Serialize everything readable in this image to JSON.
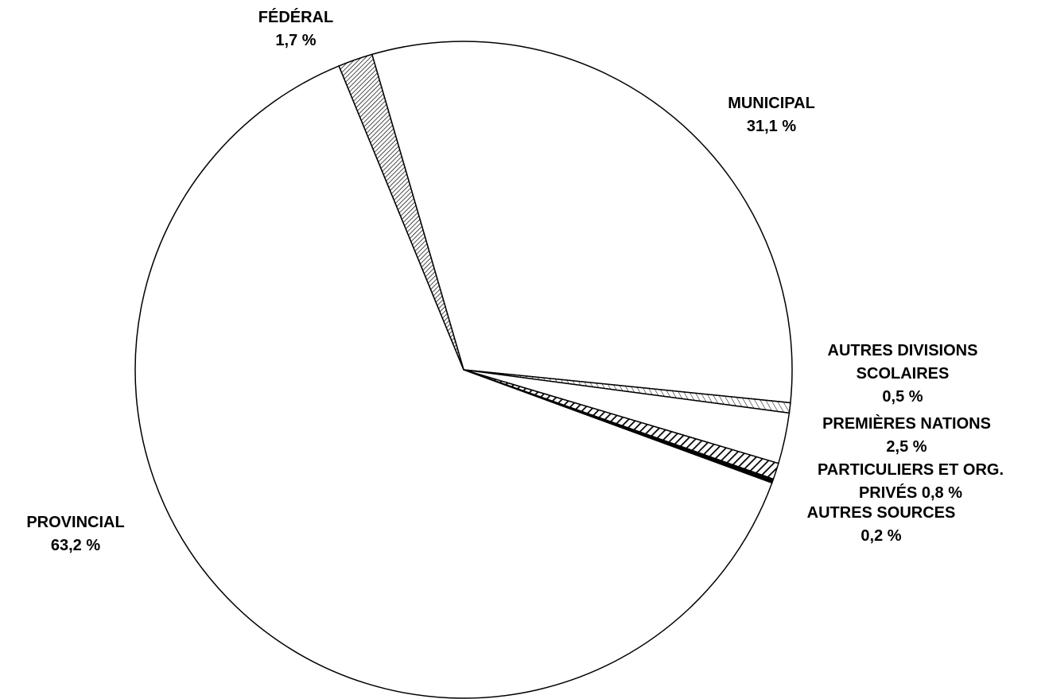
{
  "chart_data": {
    "type": "pie",
    "categories": [
      "MUNICIPAL",
      "AUTRES DIVISIONS SCOLAIRES",
      "PREMIÈRES NATIONS",
      "PARTICULIERS ET ORG. PRIVÉS",
      "AUTRES SOURCES",
      "PROVINCIAL",
      "FÉDÉRAL"
    ],
    "values": [
      31.1,
      0.5,
      2.5,
      0.8,
      0.2,
      63.2,
      1.7
    ],
    "value_labels": [
      "31,1 %",
      "0,5 %",
      "2,5 %",
      "0,8 %",
      "0,2 %",
      "63,2 %",
      "1,7 %"
    ],
    "fills": [
      "white",
      "hatch-light",
      "white",
      "hatch-bold",
      "black",
      "white",
      "hatch-fine"
    ]
  }
}
